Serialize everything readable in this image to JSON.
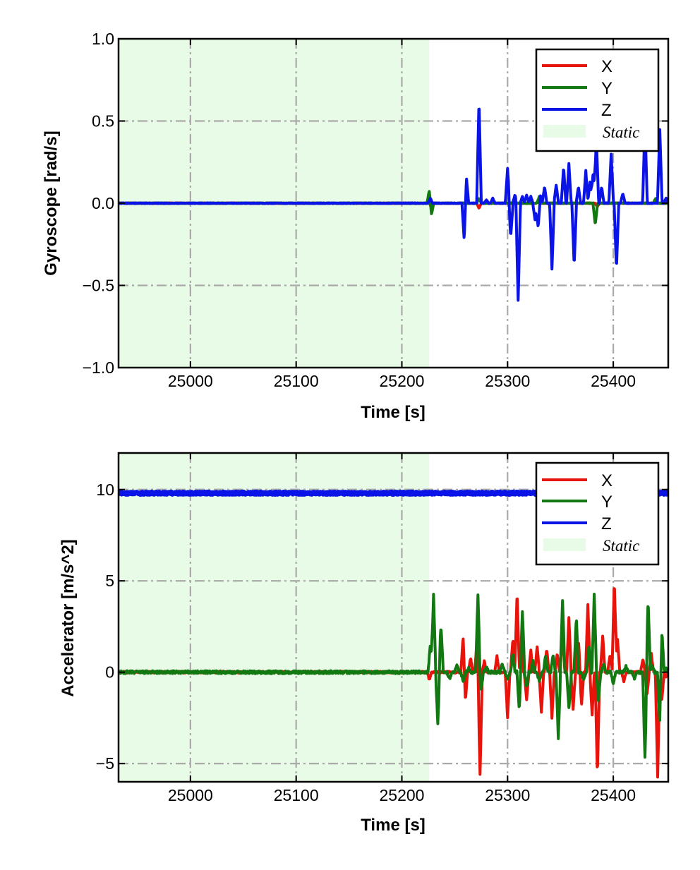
{
  "chart_data": [
    {
      "type": "line",
      "xlabel": "Time [s]",
      "ylabel": "Gyroscope [rad/s]",
      "xlim": [
        24932,
        25452
      ],
      "ylim": [
        -1.0,
        1.0
      ],
      "xticks": [
        25000,
        25100,
        25200,
        25300,
        25400
      ],
      "xtick_labels": [
        "25000",
        "25100",
        "25200",
        "25300",
        "25400"
      ],
      "yticks": [
        -1.0,
        -0.5,
        0.0,
        0.5,
        1.0
      ],
      "ytick_labels": [
        "−1.0",
        "−0.5",
        "0.0",
        "0.5",
        "1.0"
      ],
      "grid": true,
      "legend_position": "top-right",
      "static_label": "Static",
      "static_color": "#e8fbe6",
      "static_interval": [
        24932,
        25226
      ],
      "series": [
        {
          "name": "X",
          "color": "#e8140c",
          "baseline": 0.0,
          "noise": 0.002,
          "spikes": [
            [
              25226,
              0.04
            ],
            [
              25227,
              -0.04
            ],
            [
              25273,
              -0.03
            ],
            [
              25330,
              0.03
            ],
            [
              25385,
              -0.02
            ],
            [
              25440,
              0.02
            ]
          ]
        },
        {
          "name": "Y",
          "color": "#127812",
          "baseline": 0.0,
          "noise": 0.002,
          "spikes": [
            [
              25226,
              0.08
            ],
            [
              25228,
              -0.07
            ],
            [
              25273,
              0.03
            ],
            [
              25330,
              0.04
            ],
            [
              25383,
              -0.13
            ],
            [
              25440,
              0.03
            ]
          ]
        },
        {
          "name": "Z",
          "color": "#0a14e6",
          "baseline": 0.0,
          "noise": 0.002,
          "spikes": [
            [
              25227,
              0.03
            ],
            [
              25259,
              -0.23
            ],
            [
              25261,
              0.16
            ],
            [
              25273,
              0.63
            ],
            [
              25280,
              0.02
            ],
            [
              25286,
              0.03
            ],
            [
              25300,
              0.21
            ],
            [
              25303,
              -0.2
            ],
            [
              25307,
              0.05
            ],
            [
              25310,
              -0.59
            ],
            [
              25314,
              0.04
            ],
            [
              25318,
              0.05
            ],
            [
              25322,
              0.04
            ],
            [
              25326,
              -0.1
            ],
            [
              25329,
              -0.15
            ],
            [
              25331,
              0.05
            ],
            [
              25335,
              0.1
            ],
            [
              25342,
              -0.4
            ],
            [
              25346,
              0.11
            ],
            [
              25353,
              0.22
            ],
            [
              25358,
              0.24
            ],
            [
              25363,
              -0.38
            ],
            [
              25367,
              0.1
            ],
            [
              25374,
              0.2
            ],
            [
              25378,
              0.13
            ],
            [
              25381,
              0.19
            ],
            [
              25384,
              0.4
            ],
            [
              25389,
              0.1
            ],
            [
              25398,
              0.3
            ],
            [
              25403,
              -0.4
            ],
            [
              25409,
              0.06
            ],
            [
              25430,
              0.5
            ],
            [
              25444,
              0.45
            ],
            [
              25450,
              0.03
            ]
          ]
        }
      ]
    },
    {
      "type": "line",
      "xlabel": "Time [s]",
      "ylabel": "Accelerator [m/s^2]",
      "xlim": [
        24932,
        25452
      ],
      "ylim": [
        -6.0,
        12.0
      ],
      "xticks": [
        25000,
        25100,
        25200,
        25300,
        25400
      ],
      "xtick_labels": [
        "25000",
        "25100",
        "25200",
        "25300",
        "25400"
      ],
      "yticks": [
        -5,
        0,
        5,
        10
      ],
      "ytick_labels": [
        "−5",
        "0",
        "5",
        "10"
      ],
      "grid": true,
      "legend_position": "top-right",
      "static_label": "Static",
      "static_color": "#e8fbe6",
      "static_interval": [
        24932,
        25226
      ],
      "series": [
        {
          "name": "X",
          "color": "#e8140c",
          "baseline": 0.0,
          "noise": 0.05,
          "spikes": [
            [
              25226,
              -0.4
            ],
            [
              25258,
              2.0
            ],
            [
              25260,
              -1.6
            ],
            [
              25265,
              0.8
            ],
            [
              25271,
              1.6
            ],
            [
              25274,
              -5.6
            ],
            [
              25278,
              0.6
            ],
            [
              25290,
              0.9
            ],
            [
              25300,
              -2.5
            ],
            [
              25305,
              1.8
            ],
            [
              25309,
              4.4
            ],
            [
              25313,
              1.5
            ],
            [
              25318,
              -1.5
            ],
            [
              25322,
              1.2
            ],
            [
              25328,
              1.4
            ],
            [
              25332,
              -2.2
            ],
            [
              25337,
              1.3
            ],
            [
              25342,
              -2.5
            ],
            [
              25347,
              1.0
            ],
            [
              25352,
              2.5
            ],
            [
              25358,
              3.0
            ],
            [
              25362,
              -2.0
            ],
            [
              25367,
              1.7
            ],
            [
              25370,
              -1.7
            ],
            [
              25376,
              3.7
            ],
            [
              25380,
              -2.3
            ],
            [
              25385,
              -5.7
            ],
            [
              25390,
              2.0
            ],
            [
              25397,
              1.0
            ],
            [
              25401,
              5.0
            ],
            [
              25404,
              1.8
            ],
            [
              25410,
              -0.5
            ],
            [
              25428,
              0.7
            ],
            [
              25432,
              -1.2
            ],
            [
              25436,
              1.0
            ],
            [
              25442,
              -5.7
            ],
            [
              25446,
              -1.5
            ],
            [
              25450,
              -0.3
            ]
          ]
        },
        {
          "name": "Y",
          "color": "#127812",
          "baseline": 0.0,
          "noise": 0.08,
          "spikes": [
            [
              25227,
              1.5
            ],
            [
              25230,
              4.2
            ],
            [
              25234,
              -2.8
            ],
            [
              25237,
              2.6
            ],
            [
              25245,
              -0.4
            ],
            [
              25252,
              0.4
            ],
            [
              25258,
              -0.5
            ],
            [
              25263,
              0.2
            ],
            [
              25272,
              4.3
            ],
            [
              25275,
              -1.0
            ],
            [
              25280,
              0.3
            ],
            [
              25295,
              0.5
            ],
            [
              25300,
              -0.4
            ],
            [
              25305,
              1.0
            ],
            [
              25311,
              -2.0
            ],
            [
              25314,
              3.3
            ],
            [
              25318,
              -0.8
            ],
            [
              25324,
              0.6
            ],
            [
              25330,
              -0.5
            ],
            [
              25336,
              0.9
            ],
            [
              25343,
              1.0
            ],
            [
              25348,
              -3.6
            ],
            [
              25352,
              4.0
            ],
            [
              25358,
              -2.0
            ],
            [
              25365,
              3.0
            ],
            [
              25372,
              -0.4
            ],
            [
              25377,
              1.5
            ],
            [
              25382,
              4.3
            ],
            [
              25386,
              -1.5
            ],
            [
              25391,
              0.5
            ],
            [
              25400,
              -0.6
            ],
            [
              25412,
              0.3
            ],
            [
              25420,
              -0.3
            ],
            [
              25430,
              -4.7
            ],
            [
              25433,
              3.9
            ],
            [
              25437,
              0.4
            ],
            [
              25444,
              -2.8
            ],
            [
              25446,
              2.3
            ],
            [
              25450,
              0.2
            ]
          ]
        },
        {
          "name": "Z",
          "color": "#0a14e6",
          "baseline": 9.8,
          "noise": 0.06,
          "spikes": []
        }
      ]
    }
  ]
}
